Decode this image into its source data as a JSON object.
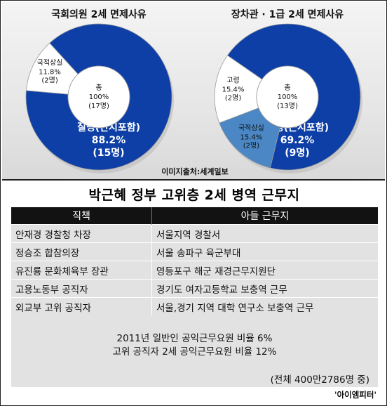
{
  "chart_data": [
    {
      "type": "pie",
      "title": "국회의원 2세 면제사유",
      "center": {
        "line1": "총",
        "line2": "100%",
        "line3": "(17명)"
      },
      "slices": [
        {
          "label": "질병(난시포함)",
          "pct_text": "88.2%",
          "count_text": "(15명)",
          "value": 88.2,
          "color": "#0d3fa6",
          "text_color": "#ffffff"
        },
        {
          "label": "국적상실",
          "pct_text": "11.8%",
          "count_text": "(2명)",
          "value": 11.8,
          "color": "#ffffff",
          "text_color": "#111111"
        }
      ]
    },
    {
      "type": "pie",
      "title": "장차관 · 1급 2세 면제사유",
      "center": {
        "line1": "총",
        "line2": "100%",
        "line3": "(13명)"
      },
      "slices": [
        {
          "label": "질병(근시포함)",
          "pct_text": "69.2%",
          "count_text": "(9명)",
          "value": 69.2,
          "color": "#0d3fa6",
          "text_color": "#ffffff"
        },
        {
          "label": "국적상실",
          "pct_text": "15.4%",
          "count_text": "(2명)",
          "value": 15.4,
          "color": "#4a87c4",
          "text_color": "#111111"
        },
        {
          "label": "고령",
          "pct_text": "15.4%",
          "count_text": "(2명)",
          "value": 15.4,
          "color": "#ffffff",
          "text_color": "#111111"
        }
      ]
    }
  ],
  "credit": "이미지출처:세계일보",
  "table": {
    "title": "박근혜 정부 고위층 2세 병역 근무지",
    "headers": [
      "직책",
      "아들 근무지"
    ],
    "rows": [
      [
        "안재경 경찰청 차장",
        "서울지역 경찰서"
      ],
      [
        "정승조 합참의장",
        "서울 송파구 육군부대"
      ],
      [
        "유진룡 문화체육부 장관",
        "영등포구 해군 재경근무지원단"
      ],
      [
        "고용노동부 공직자",
        "경기도 여자고등학교 보충역 근무"
      ],
      [
        "외교부 고위 공직자",
        "서울,경기 지역 대학 연구소 보충역 근무"
      ]
    ],
    "stats": [
      "2011년 일반인 공익근무요원 비율 6%",
      "고위 공직자 2세 공익근무요원 비율 12%"
    ],
    "note": "(전체 400만2786명 중)"
  },
  "brand": "'아이엠피터'"
}
